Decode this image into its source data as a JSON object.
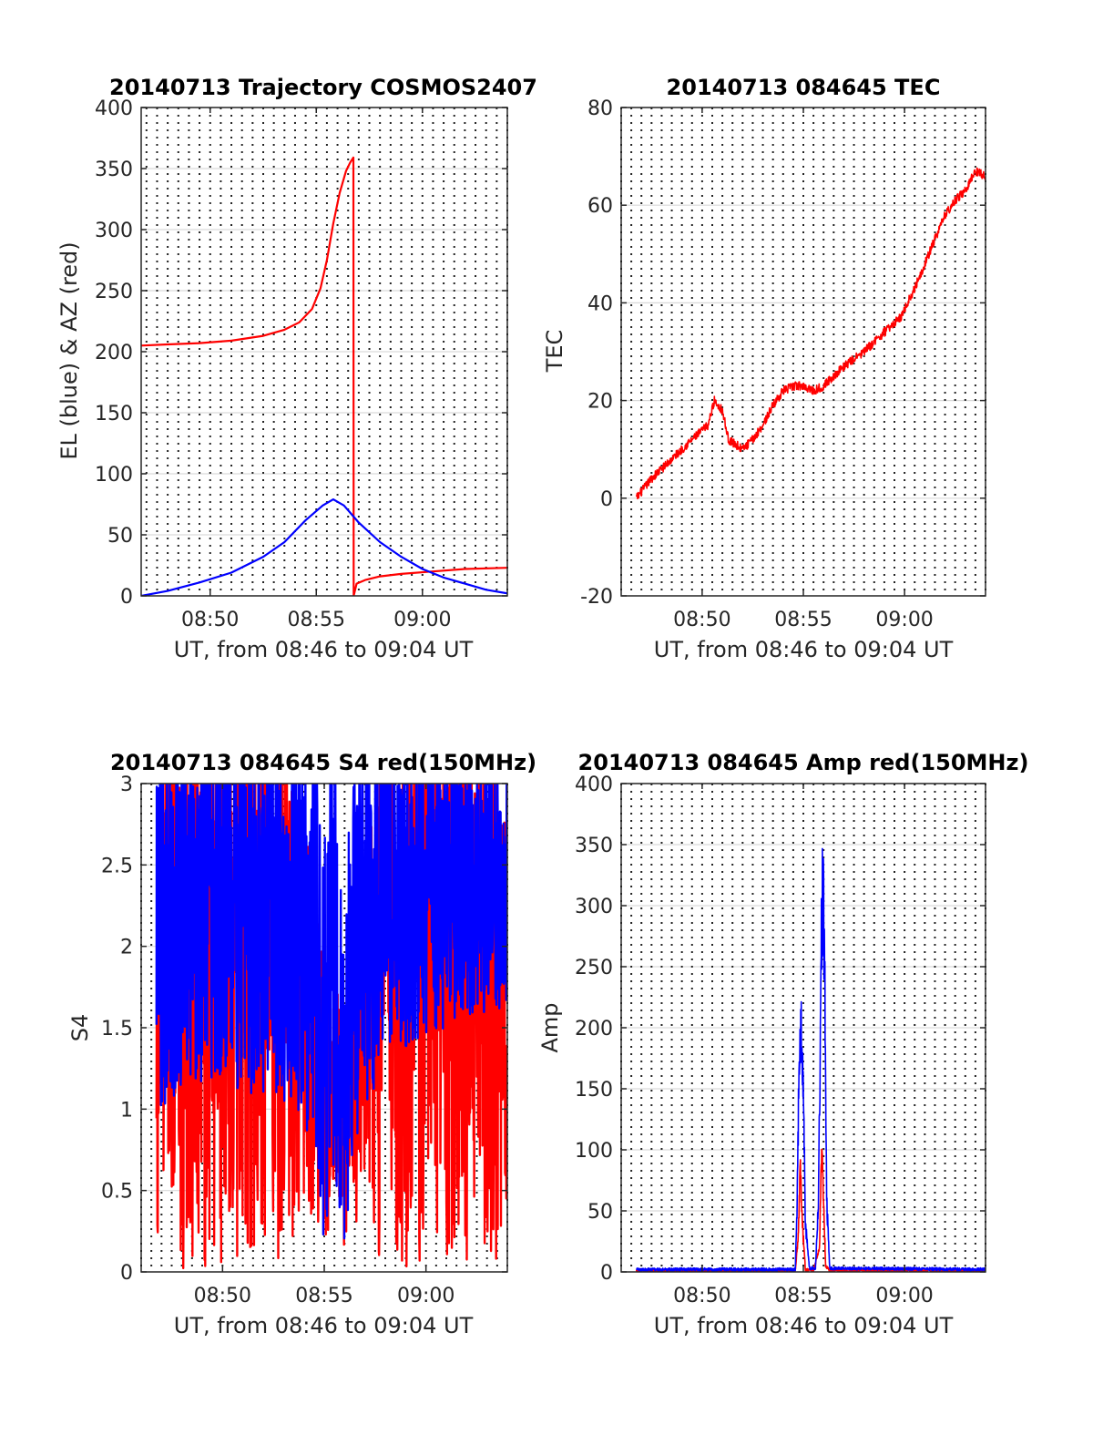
{
  "colors": {
    "az": "#ff0000",
    "el": "#0000ff",
    "red_series": "#ff0000",
    "blue_series": "#0000ff",
    "grid": "#d9d9d9",
    "axes": "#262626"
  },
  "chart_data": [
    {
      "type": "line",
      "title": "20140713 Trajectory COSMOS2407",
      "xlabel": "UT, from 08:46 to 09:04 UT",
      "ylabel": "EL (blue) & AZ (red)",
      "x_unit": "minutes after 08:00",
      "xlim": [
        46.75,
        64.0
      ],
      "ylim": [
        0,
        400
      ],
      "xticks": [
        50,
        55,
        60
      ],
      "xtick_labels": [
        "08:50",
        "08:55",
        "09:00"
      ],
      "yticks": [
        0,
        50,
        100,
        150,
        200,
        250,
        300,
        350,
        400
      ],
      "grid": "dotted vertical every 30 s, solid horizontal at y ticks",
      "series": [
        {
          "color": "#ff0000",
          "x": [
            46.75,
            48.0,
            49.5,
            51.0,
            52.5,
            53.5,
            54.2,
            54.8,
            55.2,
            55.5,
            55.8,
            56.1,
            56.4,
            56.6,
            56.75,
            56.76,
            56.9,
            57.3,
            58.0,
            59.0,
            60.5,
            62.0,
            64.0
          ],
          "y": [
            205,
            206,
            207,
            209,
            213,
            218,
            224,
            235,
            252,
            275,
            305,
            330,
            348,
            355,
            359,
            0,
            10,
            13,
            16,
            18,
            20,
            22,
            23
          ]
        },
        {
          "color": "#0000ff",
          "x": [
            46.75,
            48.0,
            49.5,
            51.0,
            52.5,
            53.5,
            54.5,
            55.3,
            55.8,
            56.3,
            57.0,
            58.0,
            59.0,
            60.0,
            61.0,
            62.0,
            63.0,
            64.0
          ],
          "y": [
            0,
            4,
            11,
            19,
            32,
            44,
            62,
            74,
            79,
            74,
            60,
            44,
            32,
            22,
            15,
            10,
            5,
            2
          ]
        }
      ]
    },
    {
      "type": "line",
      "title": "20140713 084645 TEC",
      "xlabel": "UT, from 08:46 to 09:04 UT",
      "ylabel": "TEC",
      "x_unit": "minutes after 08:00",
      "xlim": [
        46.0,
        64.0
      ],
      "ylim": [
        -20,
        80
      ],
      "xticks": [
        50,
        55,
        60
      ],
      "xtick_labels": [
        "08:50",
        "08:55",
        "09:00"
      ],
      "yticks": [
        -20,
        0,
        20,
        40,
        60,
        80
      ],
      "grid": "dotted vertical every 30 s, solid horizontal at y ticks",
      "series": [
        {
          "color": "#ff0000",
          "x": [
            46.75,
            47.5,
            48.5,
            49.5,
            50.3,
            50.6,
            51.0,
            51.3,
            52.0,
            52.5,
            53.0,
            53.5,
            54.0,
            54.6,
            55.0,
            55.5,
            56.0,
            56.5,
            57.0,
            58.0,
            59.0,
            59.8,
            60.5,
            61.0,
            61.5,
            62.0,
            62.5,
            63.0,
            63.5,
            64.0
          ],
          "y": [
            0,
            4,
            8,
            12,
            15,
            20,
            18,
            12,
            10,
            12,
            15,
            19,
            22,
            23,
            23,
            22,
            23,
            25,
            27,
            30,
            34,
            37,
            43,
            48,
            53,
            58,
            61,
            63,
            67,
            66
          ]
        }
      ]
    },
    {
      "type": "line",
      "title": "20140713 084645 S4 red(150MHz)",
      "xlabel": "UT, from 08:46 to 09:04 UT",
      "ylabel": "S4",
      "x_unit": "minutes after 08:00",
      "xlim": [
        46.0,
        64.0
      ],
      "ylim": [
        0,
        3
      ],
      "xticks": [
        50,
        55,
        60
      ],
      "xtick_labels": [
        "08:50",
        "08:55",
        "09:00"
      ],
      "yticks": [
        0,
        0.5,
        1,
        1.5,
        2,
        2.5,
        3
      ],
      "grid": "dotted vertical every 30 s, solid horizontal at y ticks",
      "series": [
        {
          "color": "#ff0000",
          "x_start": 46.75,
          "x_end": 64.0,
          "note": "noisy, spans 0 to above 3 for most of the pass; dips to 0.1 near 08:55 and 08:56",
          "envelope_x": [
            46.75,
            50.0,
            53.0,
            54.5,
            55.0,
            55.5,
            56.0,
            56.5,
            58.0,
            61.0,
            64.0
          ],
          "envelope_low": [
            0,
            0,
            0,
            0.3,
            0.05,
            0.3,
            0.05,
            0.3,
            0,
            0,
            0
          ],
          "envelope_high": [
            3,
            3,
            3,
            2.2,
            1.6,
            1.8,
            1.2,
            2.0,
            3,
            3,
            3
          ]
        },
        {
          "color": "#0000ff",
          "x_start": 46.75,
          "x_end": 64.0,
          "note": "noisy, mostly 1 to 3; dips to about 0.1 near 08:55 and 08:56",
          "envelope_x": [
            46.75,
            50.0,
            53.0,
            54.5,
            55.0,
            55.5,
            56.0,
            56.5,
            58.0,
            61.0,
            64.0
          ],
          "envelope_low": [
            1.0,
            1.1,
            1.0,
            0.8,
            0.1,
            0.6,
            0.1,
            0.8,
            1.3,
            1.5,
            1.6
          ],
          "envelope_high": [
            3,
            3,
            3,
            3,
            2.3,
            3,
            2.0,
            3,
            3,
            3,
            3
          ]
        }
      ]
    },
    {
      "type": "line",
      "title": "20140713 084645 Amp red(150MHz)",
      "xlabel": "UT, from 08:46 to 09:04 UT",
      "ylabel": "Amp",
      "x_unit": "minutes after 08:00",
      "xlim": [
        46.0,
        64.0
      ],
      "ylim": [
        0,
        400
      ],
      "xticks": [
        50,
        55,
        60
      ],
      "xtick_labels": [
        "08:50",
        "08:55",
        "09:00"
      ],
      "yticks": [
        0,
        50,
        100,
        150,
        200,
        250,
        300,
        350,
        400
      ],
      "grid": "dotted vertical every 30 s, solid horizontal at y ticks",
      "series": [
        {
          "color": "#ff0000",
          "x": [
            46.75,
            54.6,
            54.75,
            54.85,
            54.95,
            55.1,
            55.5,
            55.8,
            55.9,
            56.0,
            56.1,
            56.3,
            64.0
          ],
          "y": [
            1,
            1,
            30,
            85,
            40,
            2,
            1,
            20,
            100,
            60,
            5,
            1,
            1
          ]
        },
        {
          "color": "#0000ff",
          "x": [
            46.75,
            54.6,
            54.7,
            54.8,
            54.9,
            55.0,
            55.1,
            55.3,
            55.6,
            55.75,
            55.85,
            55.95,
            56.05,
            56.15,
            56.3,
            64.0
          ],
          "y": [
            2,
            2,
            60,
            180,
            212,
            150,
            40,
            3,
            3,
            60,
            220,
            325,
            250,
            60,
            3,
            2
          ]
        }
      ]
    }
  ]
}
